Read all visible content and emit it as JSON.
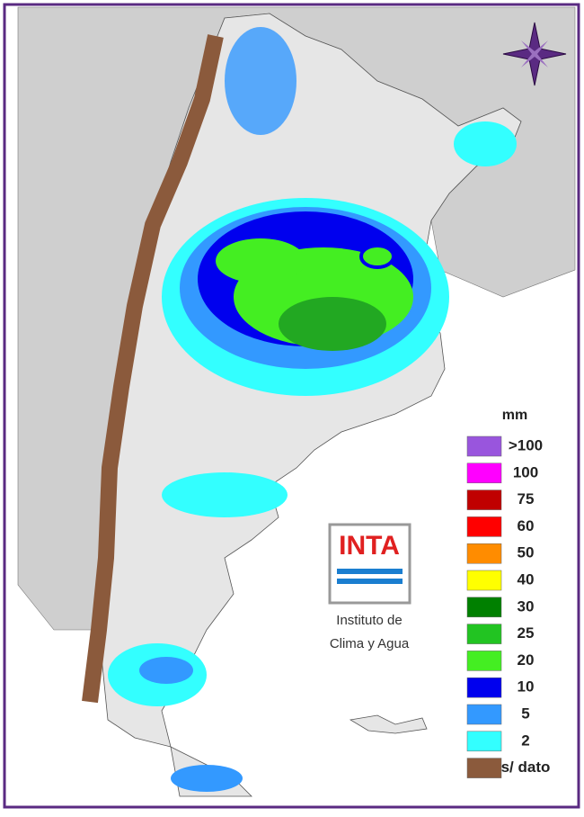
{
  "legend": {
    "title": "mm",
    "items": [
      {
        "label": ">100",
        "color": "#9955dd"
      },
      {
        "label": "100",
        "color": "#ff00ff"
      },
      {
        "label": "75",
        "color": "#c00000"
      },
      {
        "label": "60",
        "color": "#ff0000"
      },
      {
        "label": "50",
        "color": "#ff8c00"
      },
      {
        "label": "40",
        "color": "#ffff00"
      },
      {
        "label": "30",
        "color": "#008000"
      },
      {
        "label": "25",
        "color": "#22c422"
      },
      {
        "label": "20",
        "color": "#44ee22"
      },
      {
        "label": "10",
        "color": "#0000ee"
      },
      {
        "label": "5",
        "color": "#3399ff"
      },
      {
        "label": "2",
        "color": "#33ffff"
      },
      {
        "label": "s/ dato",
        "color": "#8b5a3c"
      }
    ]
  },
  "logo": {
    "name": "INTA",
    "line1": "Instituto de",
    "line2": "Clima y Agua"
  }
}
